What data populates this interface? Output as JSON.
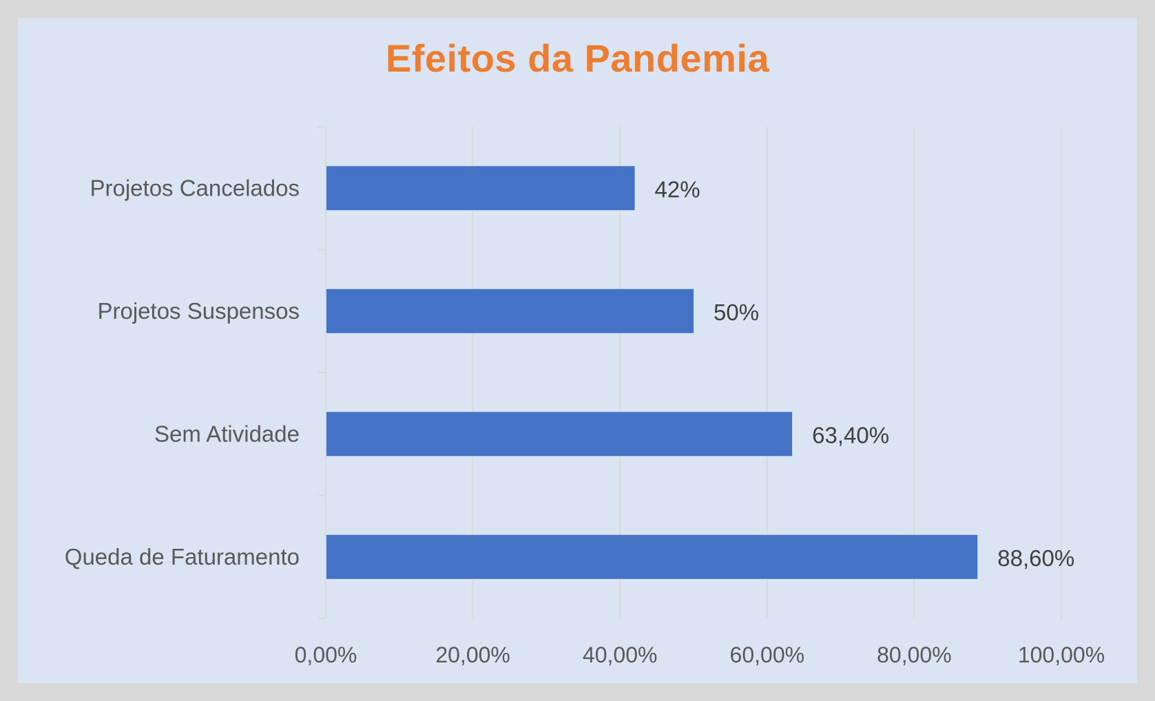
{
  "chart_data": {
    "type": "bar",
    "orientation": "horizontal",
    "title": "Efeitos da Pandemia",
    "categories": [
      "Projetos Cancelados",
      "Projetos Suspensos",
      "Sem Atividade",
      "Queda de Faturamento"
    ],
    "values": [
      0.42,
      0.5,
      0.634,
      0.886
    ],
    "data_labels": [
      "42%",
      "50%",
      "63,40%",
      "88,60%"
    ],
    "xlim": [
      0,
      1
    ],
    "x_ticks": [
      0,
      0.2,
      0.4,
      0.6,
      0.8,
      1.0
    ],
    "x_tick_labels": [
      "0,00%",
      "20,00%",
      "40,00%",
      "60,00%",
      "80,00%",
      "100,00%"
    ],
    "grid": "vertical",
    "legend": "none"
  },
  "colors": {
    "bar": "#4472c4",
    "title": "#ed7d31",
    "background": "#dbe4f3",
    "frame": "#d9d9d9",
    "gridline": "#d9d9d9"
  }
}
